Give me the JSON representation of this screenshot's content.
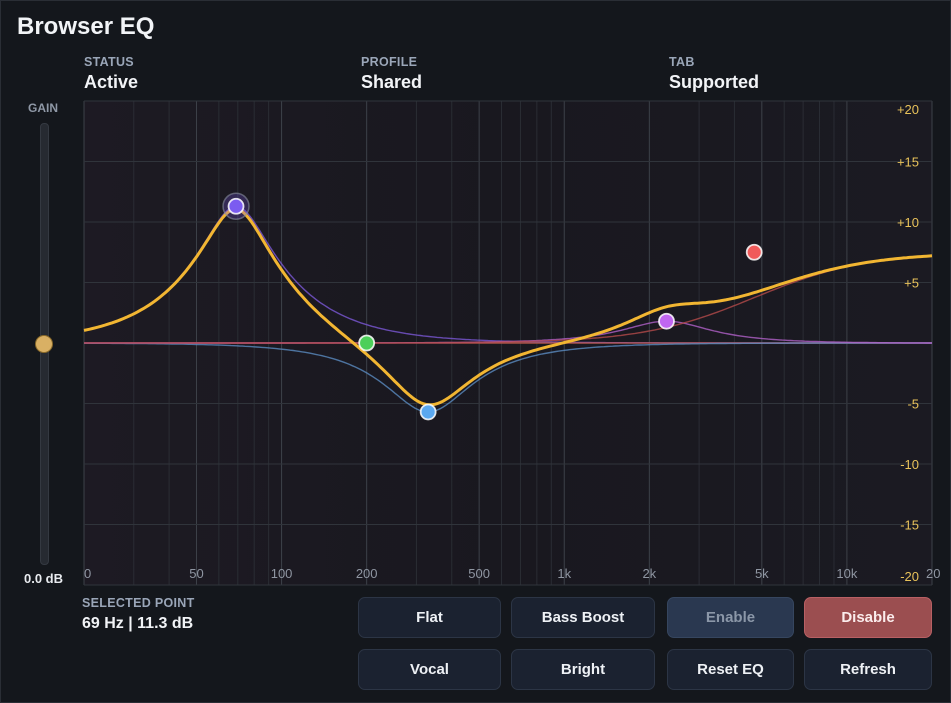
{
  "app": {
    "title": "Browser EQ"
  },
  "status": [
    {
      "label": "STATUS",
      "value": "Active"
    },
    {
      "label": "PROFILE",
      "value": "Shared"
    },
    {
      "label": "TAB",
      "value": "Supported"
    }
  ],
  "gain": {
    "label": "GAIN",
    "value_text": "0.0 dB",
    "level_db": 0,
    "range_db": [
      -20,
      20
    ]
  },
  "graph": {
    "freq_ticks": [
      "0",
      "50",
      "100",
      "200",
      "500",
      "1k",
      "2k",
      "5k",
      "10k",
      "20"
    ],
    "db_ticks": [
      "+20",
      "+15",
      "+10",
      "+5",
      "-5",
      "-10",
      "-15",
      "-20"
    ],
    "colors": {
      "response": "#f2b632",
      "grid": "#3a3f47",
      "db_label": "#e8c25a"
    },
    "points": [
      {
        "name": "band-1",
        "freq_hz": 69,
        "gain_db": 11.3,
        "color": "#7b5cf0",
        "selected": true
      },
      {
        "name": "band-2",
        "freq_hz": 200,
        "gain_db": 0,
        "color": "#4ccf5a",
        "selected": false
      },
      {
        "name": "band-3",
        "freq_hz": 330,
        "gain_db": -5.7,
        "color": "#5aa8f0",
        "selected": false
      },
      {
        "name": "band-4",
        "freq_hz": 2300,
        "gain_db": 1.8,
        "color": "#c066f0",
        "selected": false
      },
      {
        "name": "band-5",
        "freq_hz": 4700,
        "gain_db": 7.5,
        "color": "#f05a5a",
        "selected": false
      }
    ]
  },
  "selected": {
    "label": "SELECTED POINT",
    "value": "69 Hz | 11.3 dB"
  },
  "buttons": {
    "flat": "Flat",
    "bass_boost": "Bass Boost",
    "enable": "Enable",
    "disable": "Disable",
    "vocal": "Vocal",
    "bright": "Bright",
    "reset": "Reset EQ",
    "refresh": "Refresh"
  }
}
